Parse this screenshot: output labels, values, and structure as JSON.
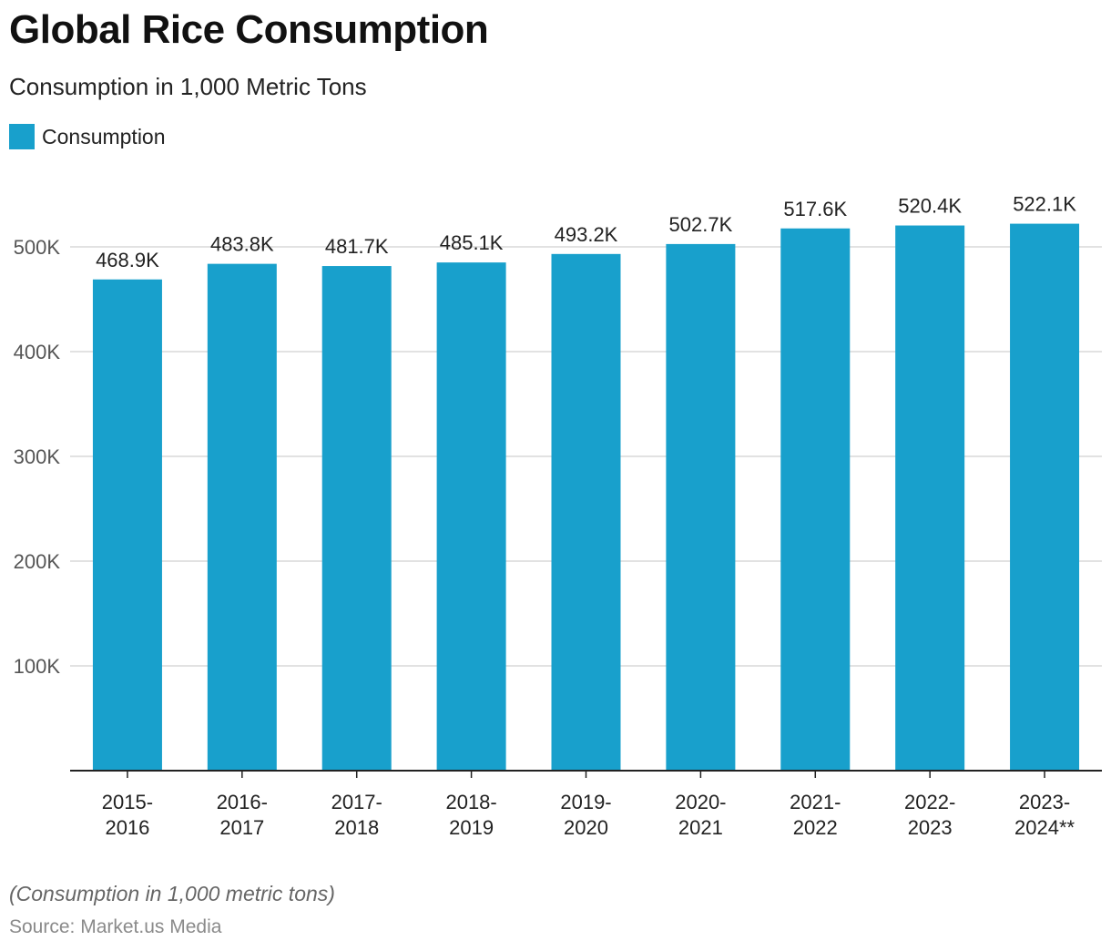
{
  "header": {
    "title": "Global Rice Consumption",
    "subtitle": "Consumption in 1,000 Metric Tons"
  },
  "legend": {
    "label": "Consumption"
  },
  "footer": {
    "note": "(Consumption in 1,000 metric tons)",
    "source": "Source: Market.us Media"
  },
  "colors": {
    "bar": "#18a0cc",
    "grid": "#d9d9d9",
    "axis": "#222222",
    "text": "#222222",
    "tick": "#555555"
  },
  "chart_data": {
    "type": "bar",
    "title": "Global Rice Consumption",
    "subtitle": "Consumption in 1,000 Metric Tons",
    "xlabel": "",
    "ylabel": "",
    "ylim": [
      0,
      500000
    ],
    "yticks": [
      {
        "value": 100000,
        "label": "100K"
      },
      {
        "value": 200000,
        "label": "200K"
      },
      {
        "value": 300000,
        "label": "300K"
      },
      {
        "value": 400000,
        "label": "400K"
      },
      {
        "value": 500000,
        "label": "500K"
      }
    ],
    "grid": true,
    "legend_position": "top-left",
    "categories": [
      [
        "2015-",
        "2016"
      ],
      [
        "2016-",
        "2017"
      ],
      [
        "2017-",
        "2018"
      ],
      [
        "2018-",
        "2019"
      ],
      [
        "2019-",
        "2020"
      ],
      [
        "2020-",
        "2021"
      ],
      [
        "2021-",
        "2022"
      ],
      [
        "2022-",
        "2023"
      ],
      [
        "2023-",
        "2024**"
      ]
    ],
    "series": [
      {
        "name": "Consumption",
        "values": [
          468900,
          483800,
          481700,
          485100,
          493200,
          502700,
          517600,
          520400,
          522100
        ],
        "labels": [
          "468.9K",
          "483.8K",
          "481.7K",
          "485.1K",
          "493.2K",
          "502.7K",
          "517.6K",
          "520.4K",
          "522.1K"
        ]
      }
    ]
  }
}
